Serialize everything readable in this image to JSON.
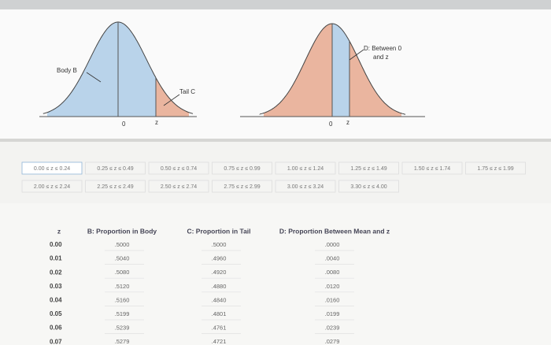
{
  "figure_left": {
    "body_label": "Body B",
    "tail_label": "Tail C",
    "mean_label": "0",
    "z_label": "z"
  },
  "figure_right": {
    "between_label": [
      "D: Between 0",
      "and z"
    ],
    "mean_label": "0",
    "z_label": "z"
  },
  "tabs": [
    [
      "0.00 ≤ z ≤ 0.24",
      "0.25 ≤ z ≤ 0.49",
      "0.50 ≤ z ≤ 0.74",
      "0.75 ≤ z ≤ 0.99",
      "1.00 ≤ z ≤ 1.24",
      "1.25 ≤ z ≤ 1.49",
      "1.50 ≤ z ≤ 1.74",
      "1.75 ≤ z ≤ 1.99"
    ],
    [
      "2.00 ≤ z ≤ 2.24",
      "2.25 ≤ z ≤ 2.49",
      "2.50 ≤ z ≤ 2.74",
      "2.75 ≤ z ≤ 2.99",
      "3.00 ≤ z ≤ 3.24",
      "3.30 ≤ z ≤ 4.00"
    ]
  ],
  "table": {
    "columns": [
      "z",
      "B: Proportion in Body",
      "C: Proportion in Tail",
      "D: Proportion Between Mean and z"
    ],
    "rows": [
      [
        "0.00",
        ".5000",
        ".5000",
        ".0000"
      ],
      [
        "0.01",
        ".5040",
        ".4960",
        ".0040"
      ],
      [
        "0.02",
        ".5080",
        ".4920",
        ".0080"
      ],
      [
        "0.03",
        ".5120",
        ".4880",
        ".0120"
      ],
      [
        "0.04",
        ".5160",
        ".4840",
        ".0160"
      ],
      [
        "0.05",
        ".5199",
        ".4801",
        ".0199"
      ],
      [
        "0.06",
        ".5239",
        ".4761",
        ".0239"
      ],
      [
        "0.07",
        ".5279",
        ".4721",
        ".0279"
      ]
    ]
  }
}
